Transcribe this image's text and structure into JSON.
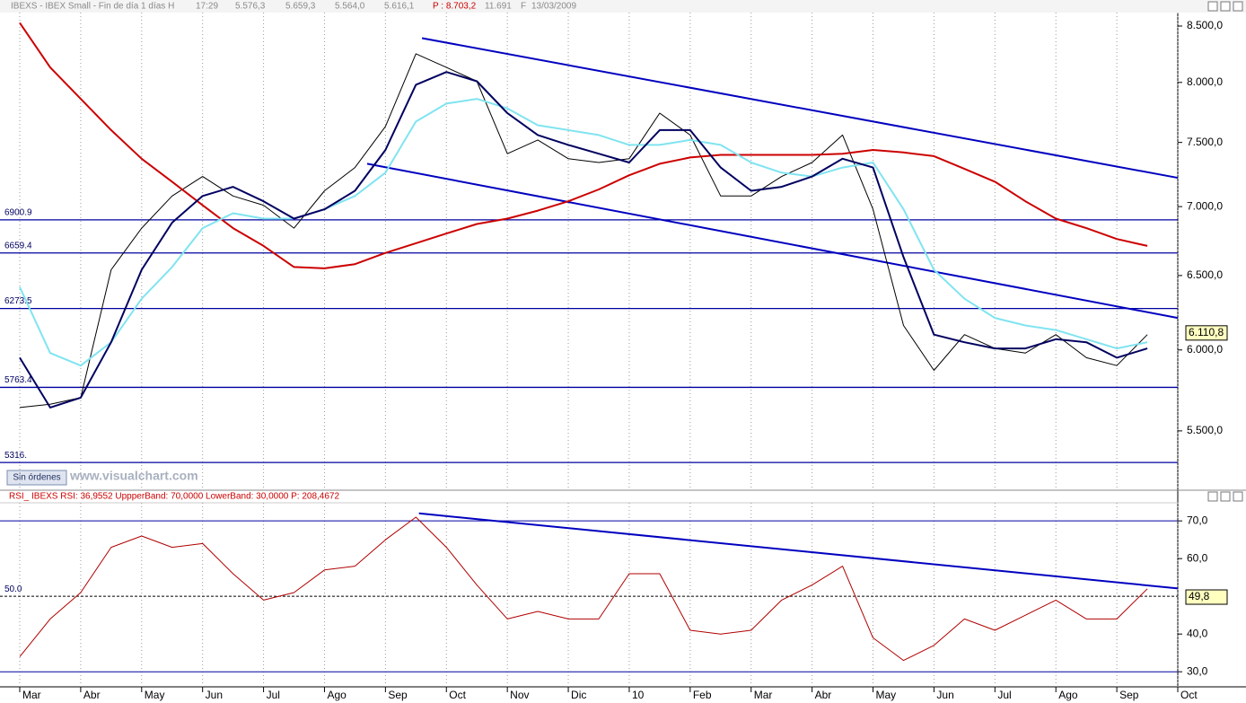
{
  "header": {
    "symbol": "IBEXS - IBEX Small - Fin de día 1 días H",
    "time": "17:29",
    "open": "5.576,3",
    "high": "5.659,3",
    "low": "5.564,0",
    "close": "5.616,1",
    "p": "P : 8.703,2",
    "volume": "11.691",
    "flag": "F",
    "date": "13/03/2009"
  },
  "ui": {
    "button": "Sin órdenes",
    "watermark": "www.visualchart.com"
  },
  "chart_data": [
    {
      "type": "line",
      "log_scale": true,
      "ylim": [
        5160,
        8624
      ],
      "yticks": [
        {
          "value": 8500,
          "label": "8.500,0"
        },
        {
          "value": 8000,
          "label": "8.000,0"
        },
        {
          "value": 7500,
          "label": "7.500,0"
        },
        {
          "value": 7000,
          "label": "7.000,0"
        },
        {
          "value": 6500,
          "label": "6.500,0"
        },
        {
          "value": 6000,
          "label": "6.000,0"
        },
        {
          "value": 5500,
          "label": "5.500,0"
        }
      ],
      "grid": "x",
      "series": [
        {
          "color": "#000000",
          "values": [
            5640,
            5660,
            5700,
            6540,
            6840,
            7080,
            7230,
            7080,
            7010,
            6840,
            7120,
            7300,
            7630,
            8250,
            8130,
            8010,
            7410,
            7520,
            7370,
            7340,
            7370,
            7740,
            7560,
            7080,
            7080,
            7230,
            7340,
            7560,
            6980,
            6160,
            5870,
            6100,
            6010,
            5980,
            6100,
            5950,
            5900,
            6100,
            null
          ]
        },
        {
          "color": "#cc0000",
          "values": [
            8530,
            8130,
            7860,
            7600,
            7370,
            7190,
            7010,
            6840,
            6710,
            6560,
            6550,
            6580,
            6660,
            6730,
            6800,
            6870,
            6910,
            6970,
            7040,
            7130,
            7240,
            7330,
            7380,
            7400,
            7400,
            7400,
            7400,
            7410,
            7440,
            7420,
            7390,
            7290,
            7190,
            7040,
            6910,
            6840,
            6760,
            6710,
            null
          ]
        },
        {
          "color": "#80e4f0",
          "values": [
            6420,
            5980,
            5900,
            6050,
            6340,
            6560,
            6840,
            6950,
            6910,
            6910,
            6980,
            7080,
            7260,
            7670,
            7820,
            7860,
            7780,
            7640,
            7600,
            7560,
            7480,
            7480,
            7520,
            7480,
            7340,
            7260,
            7230,
            7300,
            7340,
            6980,
            6540,
            6340,
            6210,
            6160,
            6130,
            6070,
            6010,
            6050,
            null
          ]
        },
        {
          "color": "#000060",
          "values": [
            5950,
            5640,
            5700,
            6050,
            6540,
            6880,
            7080,
            7150,
            7040,
            6910,
            6980,
            7120,
            7440,
            7980,
            8090,
            8010,
            7740,
            7560,
            7480,
            7410,
            7340,
            7600,
            7600,
            7300,
            7120,
            7150,
            7230,
            7370,
            7300,
            6630,
            6100,
            6050,
            6010,
            6010,
            6070,
            6050,
            5950,
            6010,
            null
          ]
        }
      ],
      "levels": [
        {
          "value": 6900.9,
          "label": "6900.9"
        },
        {
          "value": 6659.4,
          "label": "6659.4"
        },
        {
          "value": 6273.5,
          "label": "6273.5"
        },
        {
          "value": 5763.4,
          "label": "5763.4"
        },
        {
          "value": 5316,
          "label": "5316."
        }
      ],
      "level_color": "#0000a0",
      "trendlines": [
        {
          "x": [
            13.2,
            38
          ],
          "values": [
            8390,
            7220
          ]
        },
        {
          "x": [
            11.4,
            38
          ],
          "values": [
            7330,
            6210
          ]
        }
      ],
      "last_value": {
        "value": 6110.8,
        "label": "6.110,8"
      }
    },
    {
      "type": "line",
      "title": "RSI_ IBEXS  RSI: 36,9552  UppperBand: 70,0000  LowerBand: 30,0000  P: 208,4672",
      "ylim": [
        26,
        74.8
      ],
      "yticks": [
        {
          "value": 70,
          "label": "70,0"
        },
        {
          "value": 60,
          "label": "60,0"
        },
        {
          "value": 40,
          "label": "40,0"
        },
        {
          "value": 30,
          "label": "30,0"
        }
      ],
      "grid": "x",
      "categories": [
        "Mar",
        null,
        "Abr",
        null,
        "May",
        null,
        "Jun",
        null,
        "Jul",
        null,
        "Ago",
        null,
        "Sep",
        null,
        "Oct",
        null,
        "Nov",
        null,
        "Dic",
        null,
        "10",
        null,
        "Feb",
        null,
        "Mar",
        null,
        "Abr",
        null,
        "May",
        null,
        "Jun",
        null,
        "Jul",
        null,
        "Ago",
        null,
        "Sep",
        null,
        "Oct"
      ],
      "series": [
        {
          "color": "#b00000",
          "values": [
            34,
            44,
            51,
            63,
            66,
            63,
            64,
            56,
            49,
            51,
            57,
            58,
            65,
            71,
            63,
            53,
            44,
            46,
            44,
            44,
            56,
            56,
            41,
            40,
            41,
            49,
            53,
            58,
            39,
            33,
            37,
            44,
            41,
            45,
            49,
            44,
            44,
            52,
            null
          ]
        }
      ],
      "bands": [
        70,
        30
      ],
      "level_color": "#0000a0",
      "midline": {
        "value": 50,
        "label": "50.0"
      },
      "trendlines": [
        {
          "x": [
            13.1,
            38
          ],
          "values": [
            72,
            52.1
          ]
        }
      ],
      "last_value": {
        "value": 49.8,
        "label": "49,8"
      }
    }
  ]
}
